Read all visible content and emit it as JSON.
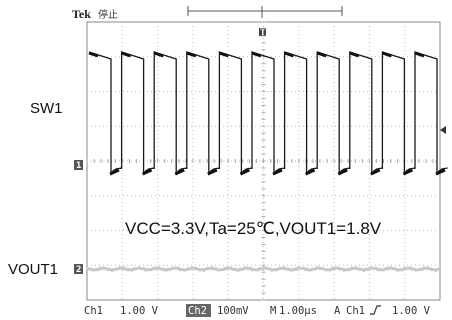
{
  "header": {
    "brand": "Tek",
    "status": "停止",
    "trigger_position_marker": "T"
  },
  "labels": {
    "sw1": "SW1",
    "vout1": "VOUT1",
    "conditions": "VCC=3.3V,Ta=25℃,VOUT1=1.8V"
  },
  "channel_markers": {
    "ch1": "1",
    "ch2": "2"
  },
  "readout": {
    "ch1_label": "Ch1",
    "ch1_scale": "1.00 V",
    "ch2_label": "Ch2",
    "ch2_scale": "100mV",
    "time_label": "M",
    "time_scale": "1.00µs",
    "trigger_mode": "A",
    "trigger_source": "Ch1",
    "trigger_level": "1.00 V"
  },
  "colors": {
    "trace": "#1a1a1a",
    "graticule": "#bdbdbd",
    "ripple": "#c8c8c8"
  }
}
